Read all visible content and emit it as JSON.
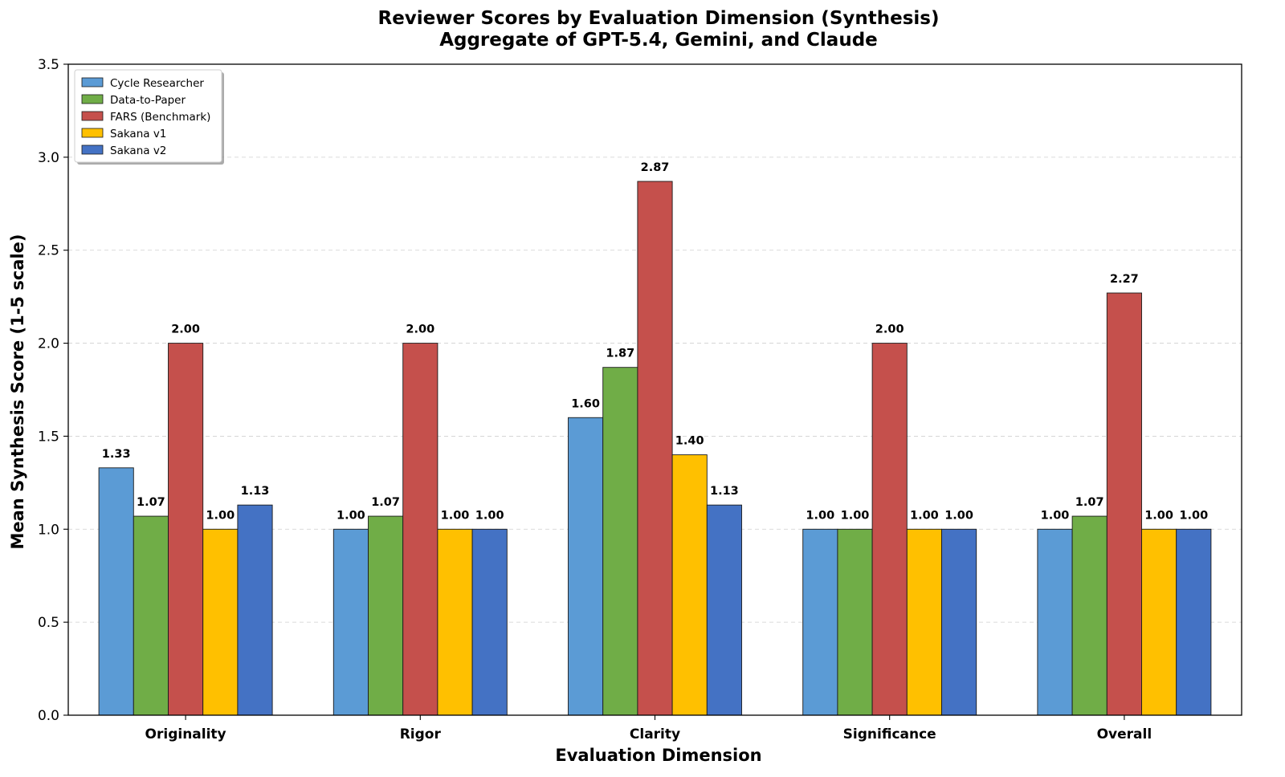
{
  "chart_data": {
    "type": "bar",
    "title": "Reviewer Scores by Evaluation Dimension (Synthesis)",
    "subtitle": "Aggregate of GPT-5.4, Gemini, and Claude",
    "xlabel": "Evaluation Dimension",
    "ylabel": "Mean Synthesis Score (1-5 scale)",
    "ylim": [
      0,
      3.5
    ],
    "yticks": [
      "0.0",
      "0.5",
      "1.0",
      "1.5",
      "2.0",
      "2.5",
      "3.0",
      "3.5"
    ],
    "grid": "y, dashed",
    "legend_position": "top-left",
    "categories": [
      "Originality",
      "Rigor",
      "Clarity",
      "Significance",
      "Overall"
    ],
    "series": [
      {
        "name": "Cycle Researcher",
        "color": "#5B9BD5",
        "values": [
          1.33,
          1.0,
          1.6,
          1.0,
          1.0
        ],
        "labels": [
          "1.33",
          "1.00",
          "1.60",
          "1.00",
          "1.00"
        ]
      },
      {
        "name": "Data-to-Paper",
        "color": "#70AD47",
        "values": [
          1.07,
          1.07,
          1.87,
          1.0,
          1.07
        ],
        "labels": [
          "1.07",
          "1.07",
          "1.87",
          "1.00",
          "1.07"
        ]
      },
      {
        "name": "FARS (Benchmark)",
        "color": "#C5504C",
        "values": [
          2.0,
          2.0,
          2.87,
          2.0,
          2.27
        ],
        "labels": [
          "2.00",
          "2.00",
          "2.87",
          "2.00",
          "2.27"
        ]
      },
      {
        "name": "Sakana v1",
        "color": "#FFC000",
        "values": [
          1.0,
          1.0,
          1.4,
          1.0,
          1.0
        ],
        "labels": [
          "1.00",
          "1.00",
          "1.40",
          "1.00",
          "1.00"
        ]
      },
      {
        "name": "Sakana v2",
        "color": "#4472C4",
        "values": [
          1.13,
          1.0,
          1.13,
          1.0,
          1.0
        ],
        "labels": [
          "1.13",
          "1.00",
          "1.13",
          "1.00",
          "1.00"
        ]
      }
    ]
  }
}
